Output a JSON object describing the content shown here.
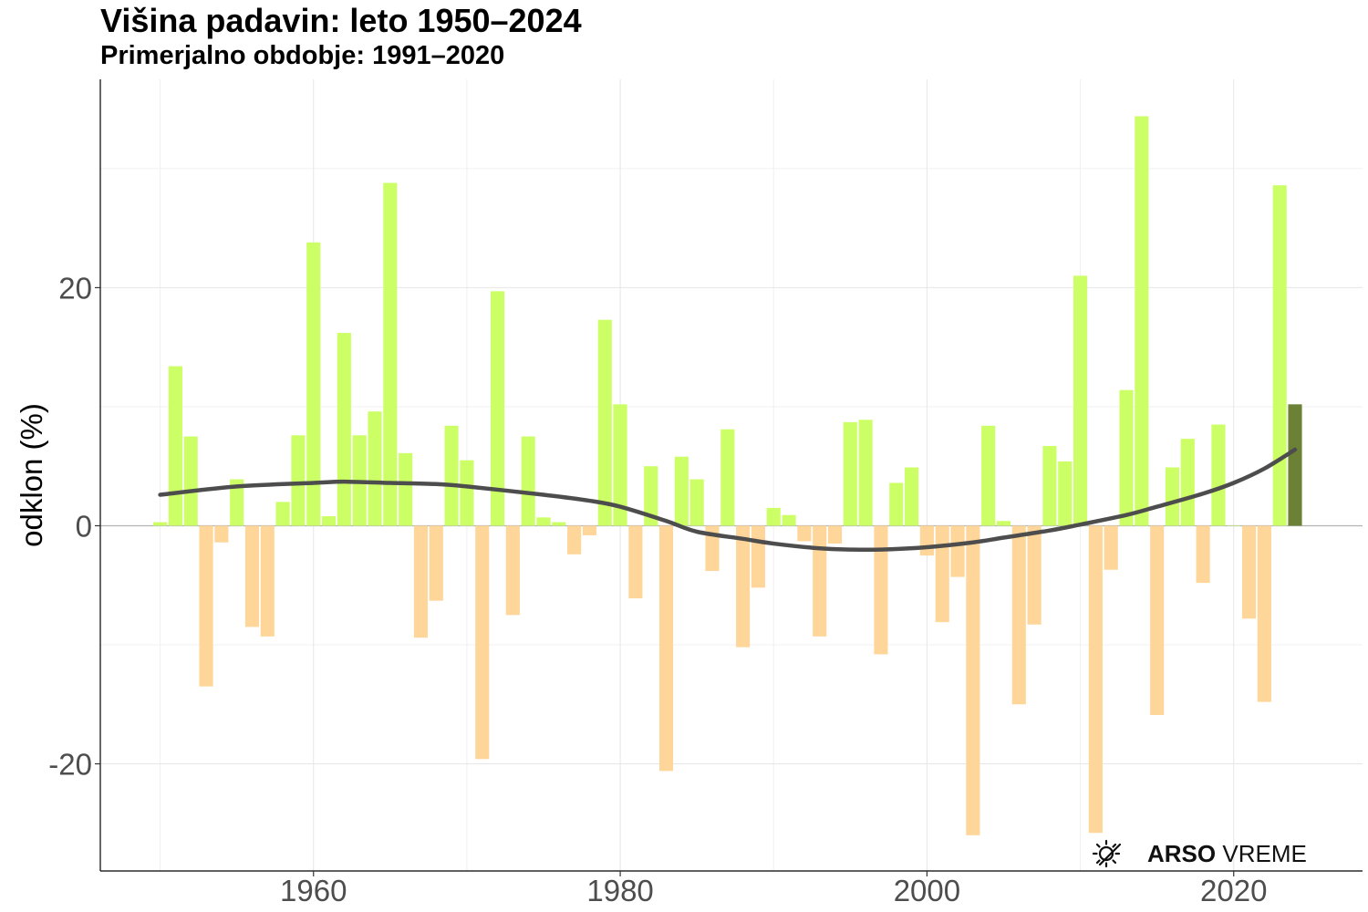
{
  "header": {
    "title": "Višina padavin: leto 1950–2024",
    "subtitle": "Primerjalno obdobje: 1991–2020"
  },
  "logo": {
    "bold": "ARSO",
    "rest": "VREME",
    "icon": "weather-icon"
  },
  "colors": {
    "positive": "#ccff66",
    "negative": "#ffd699",
    "current": "#6b8236",
    "trend": "#4d4d4d"
  },
  "chart_data": {
    "type": "bar",
    "title": "Višina padavin: leto 1950–2024",
    "subtitle": "Primerjalno obdobje: 1991–2020",
    "xlabel": "",
    "ylabel": "odklon (%)",
    "xlim": [
      1946.1,
      2028.4
    ],
    "ylim": [
      -29,
      37.5
    ],
    "xticks": [
      1960,
      1980,
      2000,
      2020
    ],
    "yticks": [
      -20,
      0,
      20
    ],
    "grid": true,
    "legend": "none",
    "x": [
      1950,
      1951,
      1952,
      1953,
      1954,
      1955,
      1956,
      1957,
      1958,
      1959,
      1960,
      1961,
      1962,
      1963,
      1964,
      1965,
      1966,
      1967,
      1968,
      1969,
      1970,
      1971,
      1972,
      1973,
      1974,
      1975,
      1976,
      1977,
      1978,
      1979,
      1980,
      1981,
      1982,
      1983,
      1984,
      1985,
      1986,
      1987,
      1988,
      1989,
      1990,
      1991,
      1992,
      1993,
      1994,
      1995,
      1996,
      1997,
      1998,
      1999,
      2000,
      2001,
      2002,
      2003,
      2004,
      2005,
      2006,
      2007,
      2008,
      2009,
      2010,
      2011,
      2012,
      2013,
      2014,
      2015,
      2016,
      2017,
      2018,
      2019,
      2020,
      2021,
      2022,
      2023,
      2024
    ],
    "values": [
      0.3,
      13.4,
      7.5,
      -13.5,
      -1.4,
      3.9,
      -8.5,
      -9.3,
      2.0,
      7.6,
      23.8,
      0.8,
      16.2,
      7.6,
      9.6,
      28.8,
      6.1,
      -9.4,
      -6.3,
      8.4,
      5.5,
      -19.6,
      19.7,
      -7.5,
      7.5,
      0.7,
      0.3,
      -2.4,
      -0.8,
      17.3,
      10.2,
      -6.1,
      5.0,
      -20.6,
      5.8,
      3.9,
      -3.8,
      8.1,
      -10.2,
      -5.2,
      1.5,
      0.9,
      -1.3,
      -9.3,
      -1.5,
      8.7,
      8.9,
      -10.8,
      3.6,
      4.9,
      -2.5,
      -8.1,
      -4.3,
      -26.0,
      8.4,
      0.4,
      -15.0,
      -8.3,
      6.7,
      5.4,
      21.0,
      -25.8,
      -3.7,
      11.4,
      34.4,
      -15.9,
      4.9,
      7.3,
      -4.8,
      8.5,
      0.0,
      -7.8,
      -14.8,
      28.6,
      10.2
    ],
    "highlight_x": 2024,
    "trend": {
      "x": [
        1950,
        1955,
        1960,
        1962,
        1965,
        1968,
        1970,
        1975,
        1978,
        1980,
        1983,
        1985,
        1988,
        1990,
        1993,
        1995,
        1997,
        2000,
        2003,
        2005,
        2008,
        2010,
        2013,
        2015,
        2018,
        2020,
        2022,
        2024
      ],
      "y": [
        2.6,
        3.3,
        3.6,
        3.7,
        3.6,
        3.5,
        3.3,
        2.6,
        2.1,
        1.6,
        0.4,
        -0.5,
        -1.1,
        -1.5,
        -1.9,
        -2.0,
        -2.0,
        -1.8,
        -1.4,
        -1.0,
        -0.4,
        0.1,
        0.9,
        1.6,
        2.7,
        3.6,
        4.8,
        6.4
      ]
    }
  }
}
